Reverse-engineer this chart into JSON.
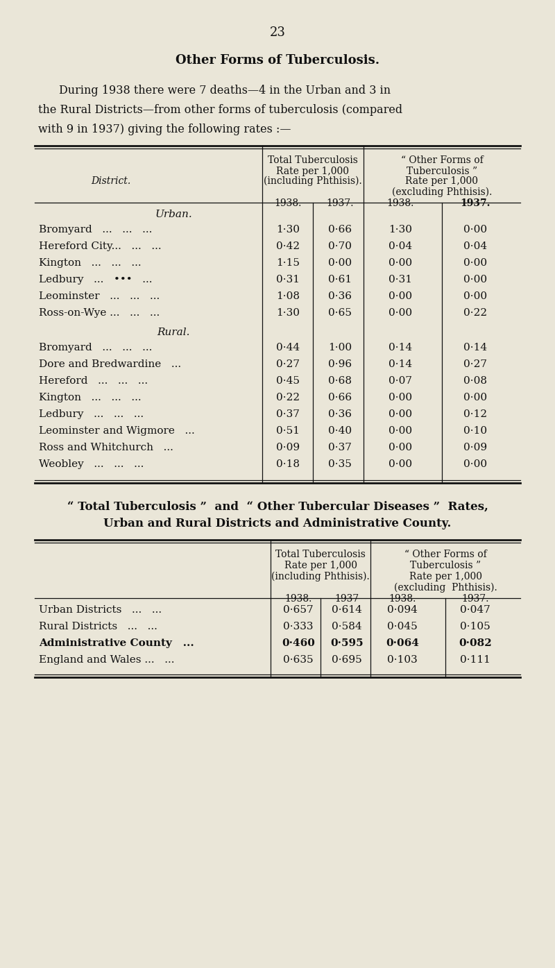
{
  "page_number": "23",
  "title": "Other Forms of Tuberculosis.",
  "intro_text": [
    "During 1938 there were 7 deaths—4 in the Urban and 3 in",
    "the Rural Districts—from other forms of tuberculosis (compared",
    "with 9 in 1937) giving the following rates :—"
  ],
  "background_color": "#eae6d8",
  "t1_urban_rows": [
    [
      "Bromyard   ...   ...   ...",
      "1·30",
      "0·66",
      "1·30",
      "0·00"
    ],
    [
      "Hereford City...   ...   ...",
      "0·42",
      "0·70",
      "0·04",
      "0·04"
    ],
    [
      "Kington   ...   ...   ...",
      "1·15",
      "0·00",
      "0·00",
      "0·00"
    ],
    [
      "Ledbury   ...   •••   ...",
      "0·31",
      "0·61",
      "0·31",
      "0·00"
    ],
    [
      "Leominster   ...   ...   ...",
      "1·08",
      "0·36",
      "0·00",
      "0·00"
    ],
    [
      "Ross-on-Wye ...   ...   ...",
      "1·30",
      "0·65",
      "0·00",
      "0·22"
    ]
  ],
  "t1_rural_rows": [
    [
      "Bromyard   ...   ...   ...",
      "0·44",
      "1·00",
      "0·14",
      "0·14"
    ],
    [
      "Dore and Bredwardine   ...",
      "0·27",
      "0·96",
      "0·14",
      "0·27"
    ],
    [
      "Hereford   ...   ...   ...",
      "0·45",
      "0·68",
      "0·07",
      "0·08"
    ],
    [
      "Kington   ...   ...   ...",
      "0·22",
      "0·66",
      "0·00",
      "0·00"
    ],
    [
      "Ledbury   ...   ...   ...",
      "0·37",
      "0·36",
      "0·00",
      "0·12"
    ],
    [
      "Leominster and Wigmore   ...",
      "0·51",
      "0·40",
      "0·00",
      "0·10"
    ],
    [
      "Ross and Whitchurch   ...",
      "0·09",
      "0·37",
      "0·00",
      "0·09"
    ],
    [
      "Weobley   ...   ...   ...",
      "0·18",
      "0·35",
      "0·00",
      "0·00"
    ]
  ],
  "section2_title_line1": "“ Total Tuberculosis ”  and  “ Other Tubercular Diseases ”  Rates,",
  "section2_title_line2": "Urban and Rural Districts and Administrative County.",
  "t2_rows": [
    [
      "Urban Districts   ...   ...",
      "0·657",
      "0·614",
      "0·094",
      "0·047",
      false
    ],
    [
      "Rural Districts   ...   ...",
      "0·333",
      "0·584",
      "0·045",
      "0·105",
      false
    ],
    [
      "Administrative County   ...",
      "0·460",
      "0·595",
      "0·064",
      "0·082",
      true
    ],
    [
      "England and Wales ...   ...",
      "0·635",
      "0·695",
      "0·103",
      "0·111",
      false
    ]
  ]
}
